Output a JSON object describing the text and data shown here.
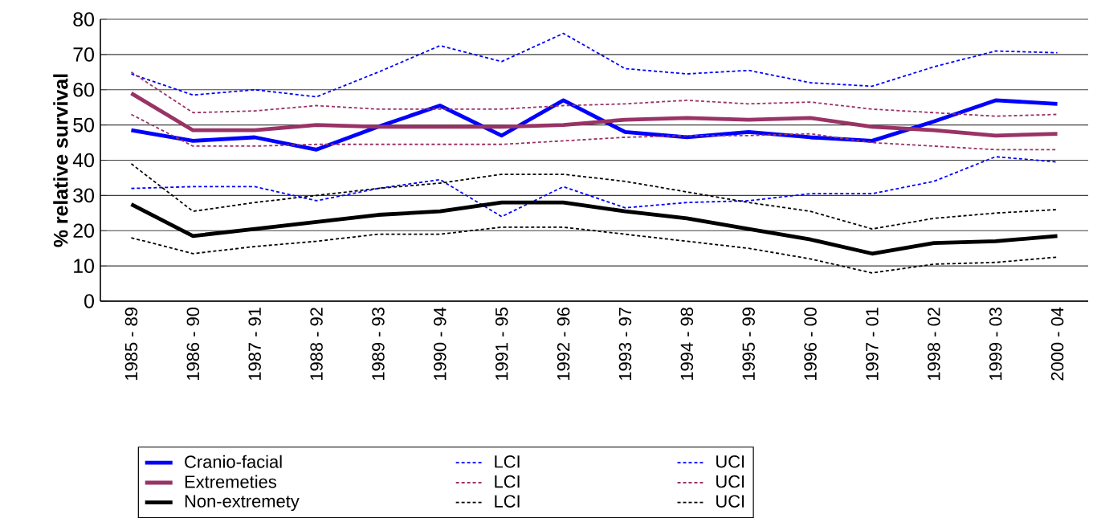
{
  "chart_data": {
    "type": "line",
    "ylabel": "% relative survival",
    "categories": [
      "1985 - 89",
      "1986 - 90",
      "1987 - 91",
      "1988 - 92",
      "1989 - 93",
      "1990 - 94",
      "1991 - 95",
      "1992 - 96",
      "1993 - 97",
      "1994 - 98",
      "1995 - 99",
      "1996 - 00",
      "1997 - 01",
      "1998 - 02",
      "1999 - 03",
      "2000 - 04"
    ],
    "ylim": [
      0,
      80
    ],
    "yticks": [
      0,
      10,
      20,
      30,
      40,
      50,
      60,
      70,
      80
    ],
    "grid": "y",
    "legend": "bottom",
    "marker": "none",
    "series": [
      {
        "name": "Cranio-facial",
        "color": "#0000ff",
        "line_style": "solid",
        "values": [
          48.5,
          45.5,
          46.5,
          43,
          49.5,
          55.5,
          47,
          57,
          48,
          46.5,
          48,
          46.5,
          45.5,
          51,
          57,
          56
        ]
      },
      {
        "name": "LCI",
        "color": "#0000ff",
        "line_style": "dashed",
        "values": [
          32,
          32.5,
          32.5,
          28.5,
          32,
          34.5,
          24,
          32.5,
          26.5,
          28,
          28.5,
          30.5,
          30.5,
          34,
          41,
          39.5
        ]
      },
      {
        "name": "UCI",
        "color": "#0000ff",
        "line_style": "dashed",
        "values": [
          64.5,
          58.5,
          60,
          58,
          65,
          72.5,
          68,
          76,
          66,
          64.5,
          65.5,
          62,
          61,
          66.5,
          71,
          70.5
        ]
      },
      {
        "name": "Extremeties",
        "color": "#993366",
        "line_style": "solid",
        "values": [
          59,
          48.5,
          48.5,
          50,
          49.5,
          49.5,
          49.5,
          50,
          51.5,
          52,
          51.5,
          52,
          49.5,
          48.5,
          47,
          47.5
        ]
      },
      {
        "name": "LCI",
        "color": "#993366",
        "line_style": "dashed",
        "values": [
          53,
          44,
          44,
          44.5,
          44.5,
          44.5,
          44.5,
          45.5,
          46.5,
          47,
          47,
          47.5,
          45,
          44,
          43,
          43
        ]
      },
      {
        "name": "UCI",
        "color": "#993366",
        "line_style": "dashed",
        "values": [
          65,
          53.5,
          54,
          55.5,
          54.5,
          54.5,
          54.5,
          55.5,
          56,
          57,
          56,
          56.5,
          54.5,
          53.5,
          52.5,
          53
        ]
      },
      {
        "name": "Non-extremety",
        "color": "#000000",
        "line_style": "solid",
        "values": [
          27.5,
          18.5,
          20.5,
          22.5,
          24.5,
          25.5,
          28,
          28,
          25.5,
          23.5,
          20.5,
          17.5,
          13.5,
          16.5,
          17,
          18.5
        ]
      },
      {
        "name": "LCI",
        "color": "#000000",
        "line_style": "dashed",
        "values": [
          18,
          13.5,
          15.5,
          17,
          19,
          19,
          21,
          21,
          19,
          17,
          15,
          12,
          8,
          10.5,
          11,
          12.5
        ]
      },
      {
        "name": "UCI",
        "color": "#000000",
        "line_style": "dashed",
        "values": [
          39,
          25.5,
          28,
          30,
          32,
          33.5,
          36,
          36,
          34,
          31,
          28,
          25.5,
          20.5,
          23.5,
          25,
          26
        ]
      }
    ]
  }
}
